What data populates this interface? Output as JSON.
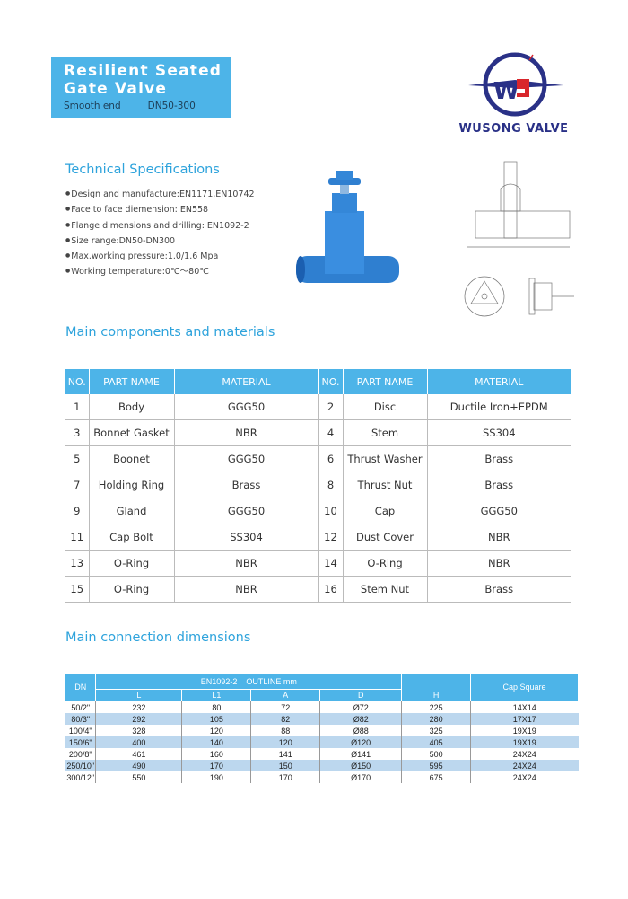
{
  "header": {
    "title_line1": "Resilient Seated",
    "title_line2": "Gate Valve",
    "subtitle_left": "Smooth end",
    "subtitle_right": "DN50-300",
    "brand": "WUSONG VALVE",
    "accent_color": "#4db4e8",
    "brand_color": "#2a3187"
  },
  "specs": {
    "heading": "Technical Specifications",
    "items": [
      "Design and manufacture:EN1171,EN10742",
      "Face to face diemension: EN558",
      "Flange dimensions and drilling: EN1092-2",
      "Size range:DN50-DN300",
      "Max.working pressure:1.0/1.6 Mpa",
      "Working temperature:0℃～80℃"
    ]
  },
  "components": {
    "heading": "Main components and materials",
    "headers": [
      "NO.",
      "PART NAME",
      "MATERIAL",
      "NO.",
      "PART NAME",
      "MATERIAL"
    ],
    "rows": [
      [
        "1",
        "Body",
        "GGG50",
        "2",
        "Disc",
        "Ductile Iron+EPDM"
      ],
      [
        "3",
        "Bonnet Gasket",
        "NBR",
        "4",
        "Stem",
        "SS304"
      ],
      [
        "5",
        "Boonet",
        "GGG50",
        "6",
        "Thrust Washer",
        "Brass"
      ],
      [
        "7",
        "Holding Ring",
        "Brass",
        "8",
        "Thrust Nut",
        "Brass"
      ],
      [
        "9",
        "Gland",
        "GGG50",
        "10",
        "Cap",
        "GGG50"
      ],
      [
        "11",
        "Cap Bolt",
        "SS304",
        "12",
        "Dust Cover",
        "NBR"
      ],
      [
        "13",
        "O-Ring",
        "NBR",
        "14",
        "O-Ring",
        "NBR"
      ],
      [
        "15",
        "O-Ring",
        "NBR",
        "16",
        "Stem Nut",
        "Brass"
      ]
    ]
  },
  "dimensions": {
    "heading": "Main connection dimensions",
    "dn_label": "DN",
    "group_label": "EN1092-2    OUTLINE mm",
    "sub_headers": [
      "L",
      "L1",
      "A",
      "D"
    ],
    "h_label": "H",
    "cap_label": "Cap Square",
    "rows": [
      [
        "50/2\"",
        "232",
        "80",
        "72",
        "Ø72",
        "225",
        "14X14"
      ],
      [
        "80/3\"",
        "292",
        "105",
        "82",
        "Ø82",
        "280",
        "17X17"
      ],
      [
        "100/4\"",
        "328",
        "120",
        "88",
        "Ø88",
        "325",
        "19X19"
      ],
      [
        "150/6\"",
        "400",
        "140",
        "120",
        "Ø120",
        "405",
        "19X19"
      ],
      [
        "200/8\"",
        "461",
        "160",
        "141",
        "Ø141",
        "500",
        "24X24"
      ],
      [
        "250/10\"",
        "490",
        "170",
        "150",
        "Ø150",
        "595",
        "24X24"
      ],
      [
        "300/12\"",
        "550",
        "190",
        "170",
        "Ø170",
        "675",
        "24X24"
      ]
    ]
  }
}
